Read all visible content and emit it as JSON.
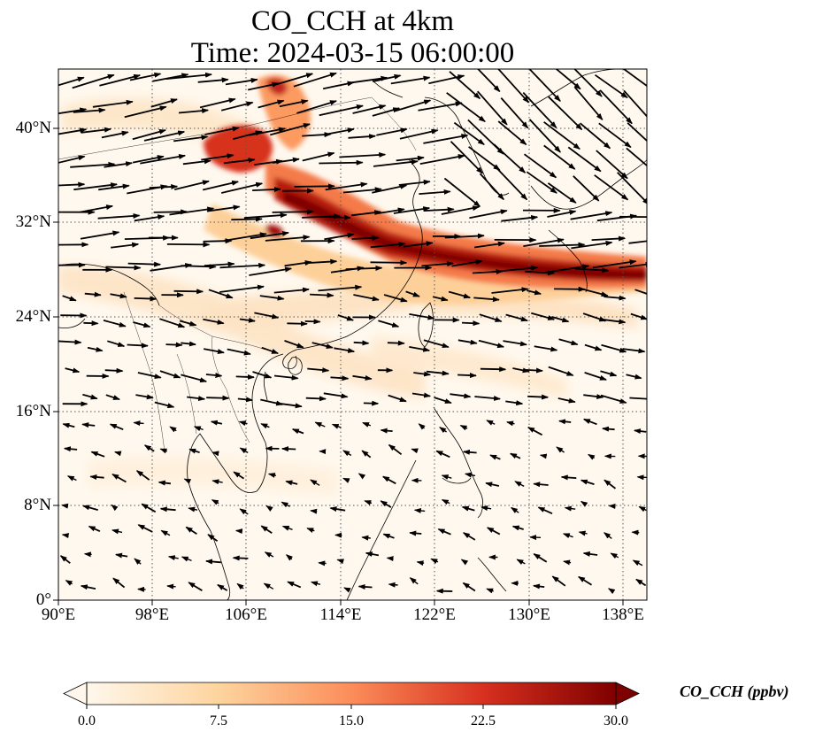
{
  "title": {
    "line1": "CO_CCH at 4km",
    "line2": "Time: 2024-03-15 06:00:00"
  },
  "map": {
    "lon_range": [
      90,
      140
    ],
    "lat_range": [
      0,
      45
    ],
    "lon_ticks": [
      "90°E",
      "98°E",
      "106°E",
      "114°E",
      "122°E",
      "130°E",
      "138°E"
    ],
    "lat_ticks": [
      "0°",
      "8°N",
      "16°N",
      "24°N",
      "32°N",
      "40°N"
    ],
    "gridlines": true
  },
  "field": {
    "variable": "CO_CCH",
    "colormap": "OrRd",
    "plume_core_color": "#7f0000"
  },
  "colorbar": {
    "label": "CO_CCH (ppbv)",
    "ticks": [
      "0.0",
      "7.5",
      "15.0",
      "22.5",
      "30.0"
    ],
    "range": [
      0,
      30
    ],
    "extend": "both",
    "colors": [
      "#fff7ec",
      "#fdd49e",
      "#fc8d59",
      "#d7301f",
      "#7f0000"
    ]
  }
}
